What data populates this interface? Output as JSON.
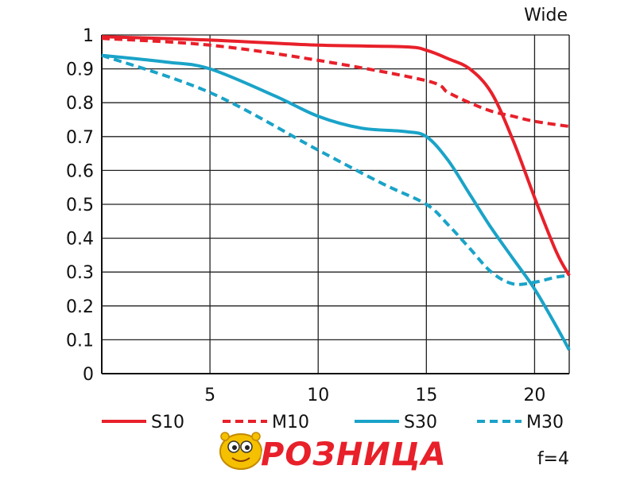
{
  "chart_data": {
    "type": "line",
    "title": "",
    "corner_label": "Wide",
    "aperture_label": "f=4",
    "xlabel": "",
    "ylabel": "",
    "xlim": [
      0,
      21.6
    ],
    "ylim": [
      0,
      1
    ],
    "x_ticks": [
      5,
      10,
      15,
      20
    ],
    "y_ticks": [
      0,
      0.1,
      0.2,
      0.3,
      0.4,
      0.5,
      0.6,
      0.7,
      0.8,
      0.9,
      1
    ],
    "y_tick_labels": [
      "0",
      "0.1",
      "0.2",
      "0.3",
      "0.4",
      "0.5",
      "0.6",
      "0.7",
      "0.8",
      "0.9",
      "1"
    ],
    "grid": true,
    "legend_position": "bottom",
    "series": [
      {
        "name": "S10",
        "color": "#e8202a",
        "dash": "solid",
        "x": [
          0,
          5,
          10,
          14,
          15,
          16,
          17,
          18,
          19,
          20,
          21,
          21.6
        ],
        "y": [
          0.995,
          0.985,
          0.97,
          0.965,
          0.955,
          0.93,
          0.9,
          0.83,
          0.69,
          0.52,
          0.36,
          0.29
        ]
      },
      {
        "name": "M10",
        "color": "#e8202a",
        "dash": "dashed",
        "x": [
          0,
          5,
          10,
          15,
          16,
          17,
          18,
          19,
          20,
          21.6
        ],
        "y": [
          0.99,
          0.97,
          0.925,
          0.865,
          0.83,
          0.8,
          0.775,
          0.76,
          0.745,
          0.73
        ]
      },
      {
        "name": "S30",
        "color": "#1aa3c8",
        "dash": "solid",
        "x": [
          0,
          3,
          5,
          8,
          10,
          12,
          14,
          15,
          16,
          17,
          18,
          19,
          20,
          21,
          21.6
        ],
        "y": [
          0.94,
          0.92,
          0.9,
          0.82,
          0.76,
          0.725,
          0.715,
          0.7,
          0.63,
          0.53,
          0.43,
          0.34,
          0.25,
          0.14,
          0.07
        ]
      },
      {
        "name": "M30",
        "color": "#1aa3c8",
        "dash": "dashed",
        "x": [
          0,
          5,
          10,
          13,
          15,
          16,
          17,
          18,
          19,
          20,
          21,
          21.6
        ],
        "y": [
          0.94,
          0.83,
          0.66,
          0.56,
          0.5,
          0.44,
          0.37,
          0.3,
          0.265,
          0.27,
          0.285,
          0.29
        ]
      }
    ]
  },
  "logo": {
    "text": "РОЗНИЦА",
    "colors": {
      "fill": "#e8202a",
      "outline": "#ffffff",
      "mascot": "#f5c000"
    }
  }
}
